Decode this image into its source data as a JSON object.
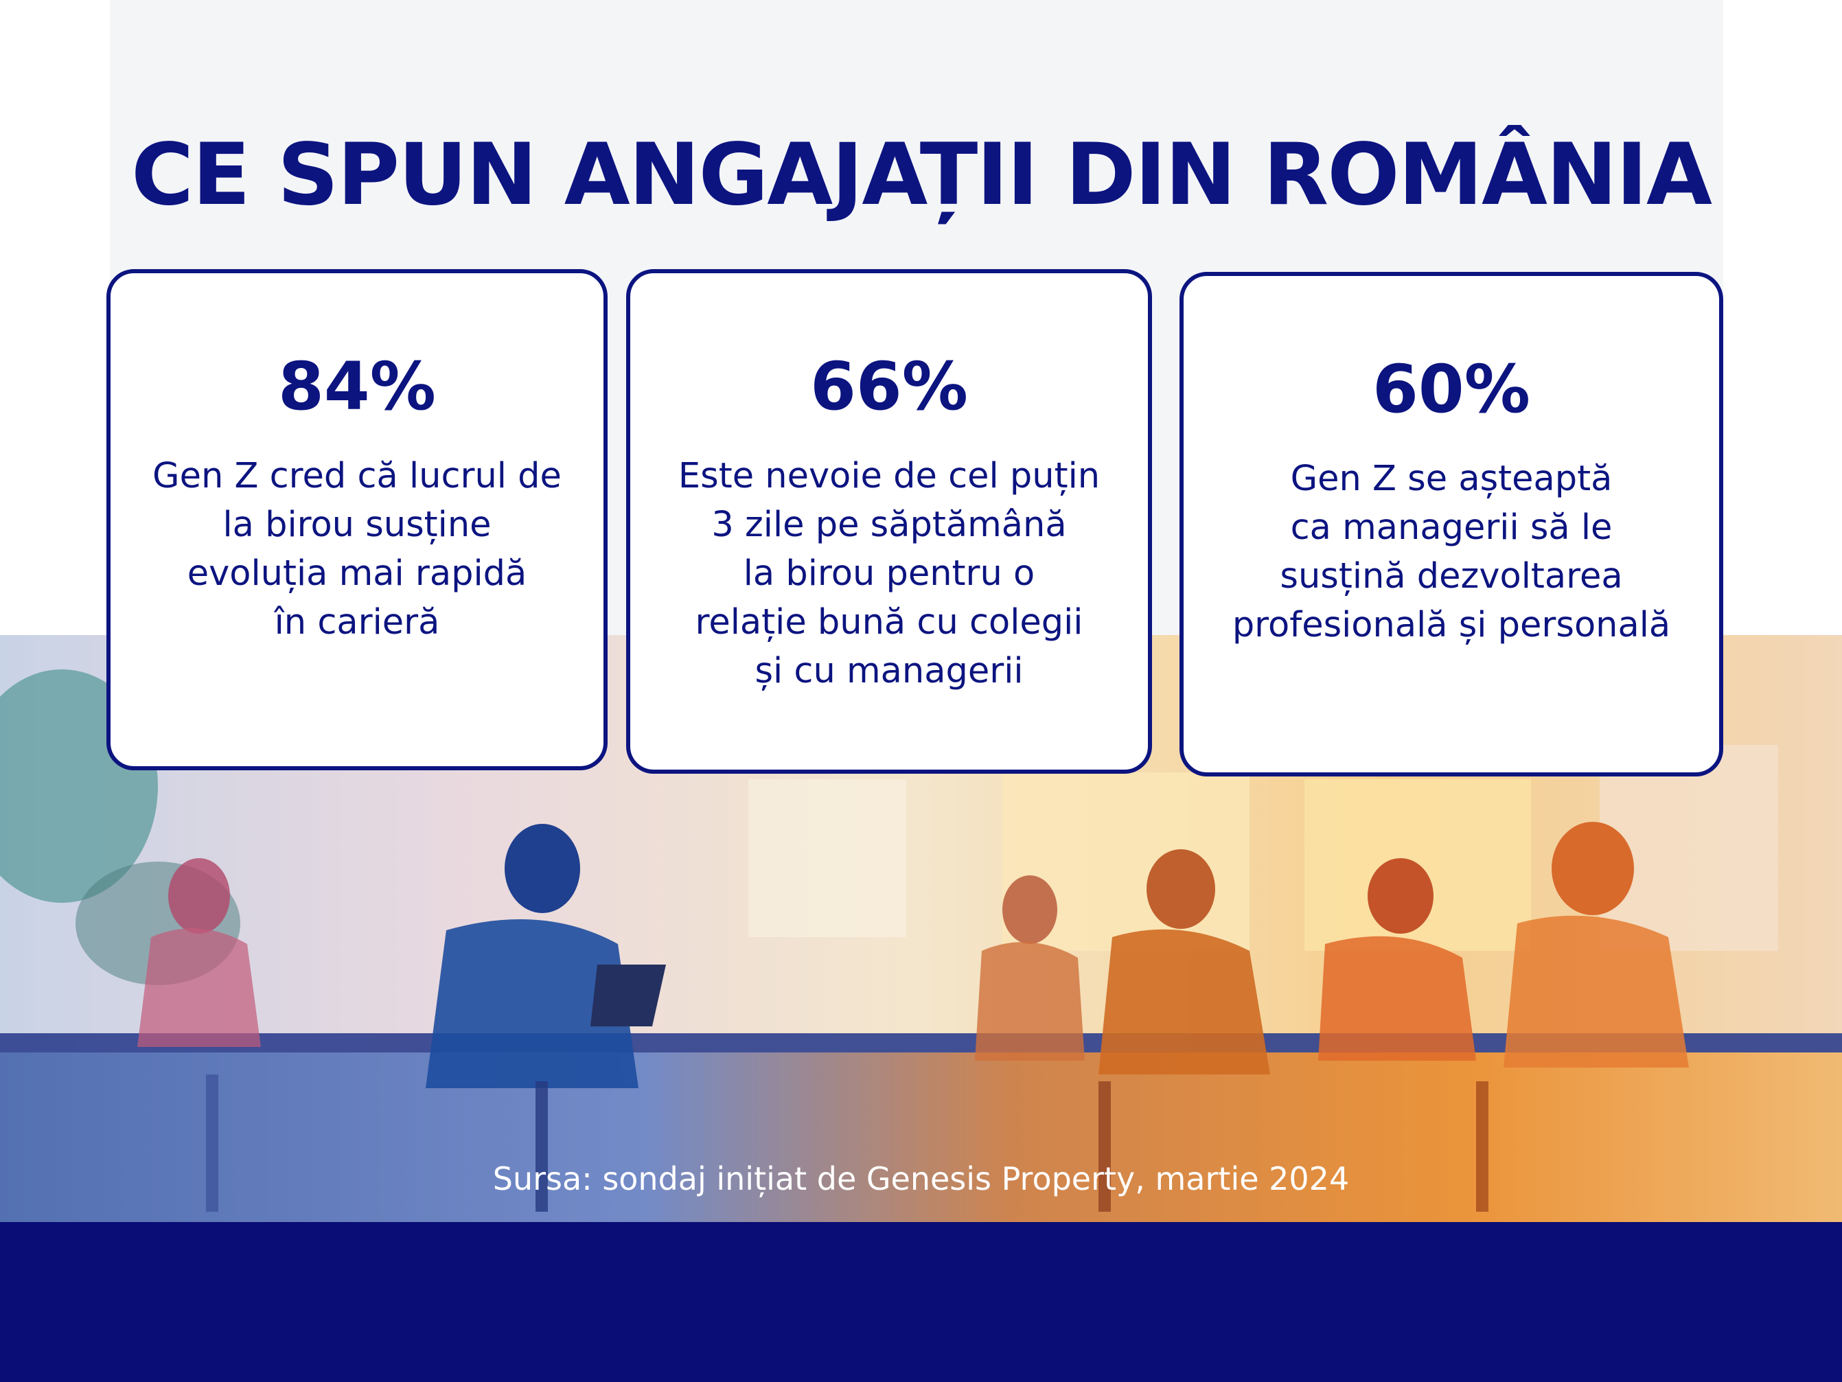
{
  "title": "CE SPUN ANGAJAȚII DIN ROMÂNIA",
  "cards": [
    {
      "stat": "84%",
      "text": "Gen Z cred că lucrul de\nla birou susține\nevoluția mai rapidă\nîn carieră"
    },
    {
      "stat": "66%",
      "text": "Este nevoie de cel puțin\n3 zile pe săptămână\n la birou pentru o\nrelație bună cu colegii\nși cu managerii"
    },
    {
      "stat": "60%",
      "text": "Gen Z se așteaptă\nca managerii să le\nsusțină dezvoltarea\nprofesională și personală"
    }
  ],
  "footer": {
    "source": "Sursa: sondaj inițiat de Genesis Property, martie 2024"
  },
  "colors": {
    "navy": "#0c1480",
    "footer": "#0a0d75",
    "panel": "#f4f5f7"
  }
}
